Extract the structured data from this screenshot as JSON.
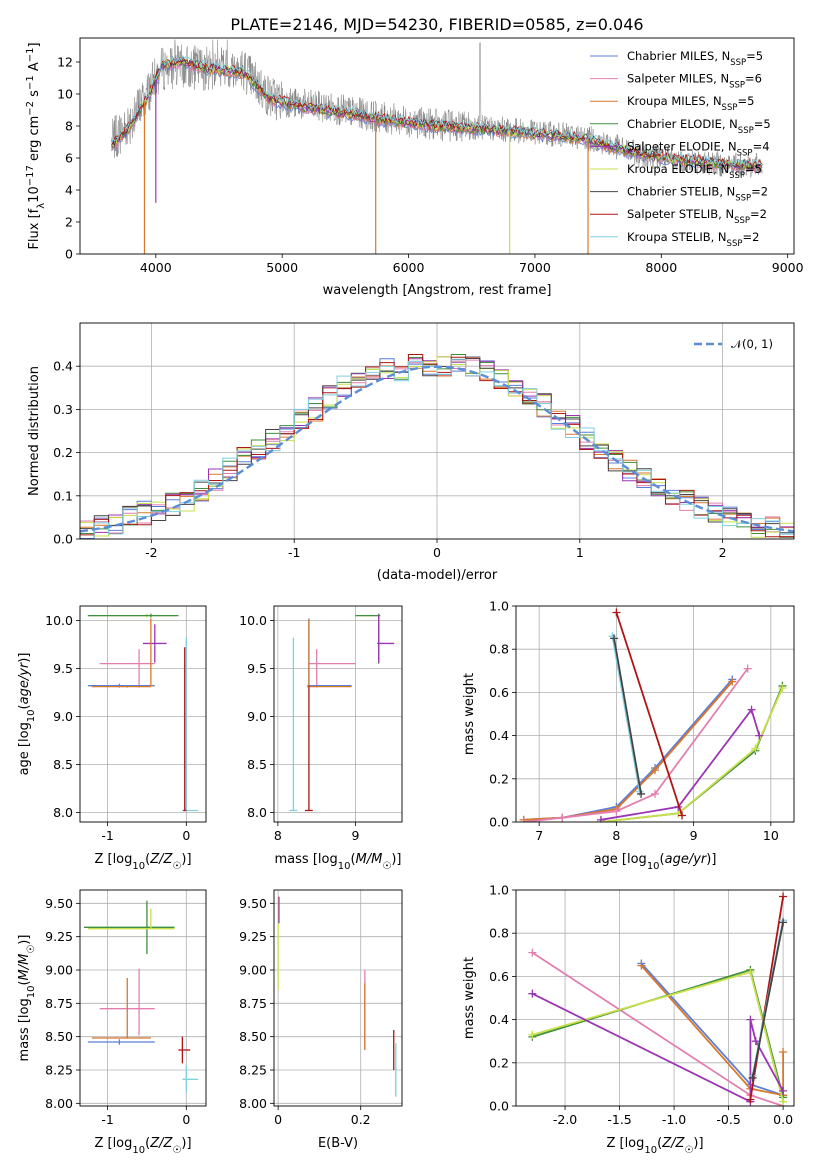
{
  "title": "PLATE=2146, MJD=54230, FIBERID=0585, z=0.046",
  "colors": {
    "Chabrier MILES": "#5b7fd8",
    "Salpeter MILES": "#e27fb0",
    "Kroupa MILES": "#d9772a",
    "Chabrier ELODIE": "#3e8f3e",
    "Salpeter ELODIE": "#9b35b4",
    "Kroupa ELODIE": "#c8e04a",
    "Chabrier STELIB": "#444444",
    "Salpeter STELIB": "#b01515",
    "Kroupa STELIB": "#7fd0e0",
    "data": "#808080",
    "normal": "#5b8ed8"
  },
  "chart_data": [
    {
      "id": "spectrum",
      "type": "line",
      "xlabel": "wavelength [Angstrom, rest frame]",
      "ylabel": "Flux [f_λ 10^-17 erg cm^-2 s^-1 A^-1]",
      "xlim": [
        3400,
        9050
      ],
      "ylim": [
        0,
        13.5
      ],
      "xticks": [
        4000,
        5000,
        6000,
        7000,
        8000,
        9000
      ],
      "yticks": [
        0,
        2,
        4,
        6,
        8,
        10,
        12
      ],
      "grid": false,
      "legend_position": "right",
      "legend": [
        {
          "name": "Chabrier MILES",
          "n": "5"
        },
        {
          "name": "Salpeter MILES",
          "n": "6"
        },
        {
          "name": "Kroupa MILES",
          "n": "5"
        },
        {
          "name": "Chabrier ELODIE",
          "n": "5"
        },
        {
          "name": "Salpeter ELODIE",
          "n": "4"
        },
        {
          "name": "Kroupa ELODIE",
          "n": "5"
        },
        {
          "name": "Chabrier STELIB",
          "n": "2"
        },
        {
          "name": "Salpeter STELIB",
          "n": "2"
        },
        {
          "name": "Kroupa STELIB",
          "n": "2"
        }
      ],
      "model_continuum": [
        [
          3650,
          6.7
        ],
        [
          3800,
          8.0
        ],
        [
          3950,
          10.0
        ],
        [
          4050,
          11.8
        ],
        [
          4200,
          12.0
        ],
        [
          4400,
          11.6
        ],
        [
          4700,
          11.3
        ],
        [
          4900,
          9.7
        ],
        [
          5100,
          9.3
        ],
        [
          5400,
          8.9
        ],
        [
          5800,
          8.4
        ],
        [
          6200,
          8.0
        ],
        [
          6600,
          7.8
        ],
        [
          7000,
          7.5
        ],
        [
          7400,
          7.2
        ],
        [
          7600,
          6.7
        ],
        [
          7800,
          6.3
        ],
        [
          8100,
          5.9
        ],
        [
          8500,
          5.6
        ],
        [
          8800,
          5.5
        ]
      ],
      "data_continuum": [
        [
          3650,
          7.0
        ],
        [
          3800,
          8.3
        ],
        [
          3950,
          10.3
        ],
        [
          4050,
          11.6
        ],
        [
          4200,
          11.7
        ],
        [
          4400,
          11.6
        ],
        [
          4700,
          11.5
        ],
        [
          4900,
          9.8
        ],
        [
          5100,
          9.4
        ],
        [
          5400,
          9.1
        ],
        [
          5800,
          8.5
        ],
        [
          6200,
          8.1
        ],
        [
          6600,
          7.9
        ],
        [
          7000,
          7.6
        ],
        [
          7400,
          7.3
        ],
        [
          7600,
          6.8
        ],
        [
          7800,
          6.3
        ],
        [
          8100,
          5.9
        ],
        [
          8500,
          5.6
        ],
        [
          8800,
          5.5
        ]
      ]
    },
    {
      "id": "residuals",
      "type": "step",
      "xlabel": "(data-model)/error",
      "ylabel": "Normed distribution",
      "xlim": [
        -2.5,
        2.5
      ],
      "ylim": [
        0,
        0.5
      ],
      "xticks": [
        -2,
        -1,
        0,
        1,
        2
      ],
      "yticks": [
        0.0,
        0.1,
        0.2,
        0.3,
        0.4
      ],
      "grid": true,
      "bin_width": 0.1,
      "legend_position": "top-right",
      "normal_label": "𝒩(0, 1)",
      "histogram_centers": [
        -2.45,
        -2.35,
        -2.25,
        -2.15,
        -2.05,
        -1.95,
        -1.85,
        -1.75,
        -1.65,
        -1.55,
        -1.45,
        -1.35,
        -1.25,
        -1.15,
        -1.05,
        -0.95,
        -0.85,
        -0.75,
        -0.65,
        -0.55,
        -0.45,
        -0.35,
        -0.25,
        -0.15,
        -0.05,
        0.05,
        0.15,
        0.25,
        0.35,
        0.45,
        0.55,
        0.65,
        0.75,
        0.85,
        0.95,
        1.05,
        1.15,
        1.25,
        1.35,
        1.45,
        1.55,
        1.65,
        1.75,
        1.85,
        1.95,
        2.05,
        2.15,
        2.25,
        2.35,
        2.45
      ],
      "histogram_values": [
        0.02,
        0.03,
        0.03,
        0.05,
        0.06,
        0.06,
        0.08,
        0.09,
        0.11,
        0.14,
        0.16,
        0.19,
        0.21,
        0.23,
        0.25,
        0.28,
        0.3,
        0.33,
        0.35,
        0.36,
        0.38,
        0.39,
        0.39,
        0.4,
        0.4,
        0.4,
        0.41,
        0.4,
        0.39,
        0.37,
        0.35,
        0.33,
        0.31,
        0.28,
        0.26,
        0.23,
        0.21,
        0.18,
        0.16,
        0.14,
        0.12,
        0.1,
        0.09,
        0.07,
        0.06,
        0.05,
        0.04,
        0.03,
        0.03,
        0.02
      ]
    },
    {
      "id": "age_vs_Z",
      "type": "scatter",
      "xlabel": "Z [log10(Z/Z☉)]",
      "ylabel": "age  [log10(age/yr)]",
      "xlim": [
        -1.35,
        0.25
      ],
      "ylim": [
        7.9,
        10.15
      ],
      "xticks": [
        -1,
        0
      ],
      "yticks": [
        8.0,
        8.5,
        9.0,
        9.5,
        10.0
      ],
      "grid": true,
      "points": [
        {
          "x": -0.5,
          "y": 10.05,
          "xerr": [
            0.75,
            0.35
          ],
          "yerr": [
            0.02,
            0.02
          ],
          "model": "Kroupa ELODIE"
        },
        {
          "x": -0.45,
          "y": 10.05,
          "xerr": [
            0.8,
            0.35
          ],
          "yerr": [
            0.02,
            0.02
          ],
          "model": "Chabrier ELODIE"
        },
        {
          "x": -0.6,
          "y": 9.55,
          "xerr": [
            0.5,
            0.2
          ],
          "yerr": [
            0.25,
            0.15
          ],
          "model": "Salpeter MILES"
        },
        {
          "x": -0.4,
          "y": 9.76,
          "xerr": [
            0.15,
            0.15
          ],
          "yerr": [
            0.2,
            0.2
          ],
          "model": "Salpeter ELODIE"
        },
        {
          "x": -0.85,
          "y": 9.32,
          "xerr": [
            0.4,
            0.45
          ],
          "yerr": [
            0.02,
            0.02
          ],
          "model": "Chabrier MILES"
        },
        {
          "x": -0.75,
          "y": 9.31,
          "xerr": [
            0.45,
            0.3
          ],
          "yerr": [
            0.01,
            0.01
          ],
          "model": "Kroupa MILES"
        },
        {
          "x": -0.45,
          "y": 9.32,
          "xerr": [
            0.02,
            0.02
          ],
          "yerr": [
            0.0,
            0.7
          ],
          "model": "Kroupa MILES"
        },
        {
          "x": 0.0,
          "y": 8.02,
          "xerr": [
            0.05,
            0.15
          ],
          "yerr": [
            0.0,
            1.8
          ],
          "model": "Kroupa STELIB"
        },
        {
          "x": -0.02,
          "y": 8.02,
          "xerr": [
            0.02,
            0.02
          ],
          "yerr": [
            0.0,
            1.7
          ],
          "model": "Salpeter STELIB"
        }
      ]
    },
    {
      "id": "age_vs_mass",
      "type": "scatter",
      "xlabel": "mass [log10(M/M☉)]",
      "ylabel": "",
      "xlim": [
        7.95,
        9.6
      ],
      "ylim": [
        7.9,
        10.15
      ],
      "xticks": [
        8,
        9
      ],
      "yticks": [
        8.0,
        8.5,
        9.0,
        9.5,
        10.0
      ],
      "grid": true,
      "points": [
        {
          "x": 9.3,
          "y": 10.05,
          "xerr": [
            0.3,
            0.02
          ],
          "yerr": [
            0.0,
            0.02
          ],
          "model": "Kroupa ELODIE"
        },
        {
          "x": 9.3,
          "y": 10.05,
          "xerr": [
            0.3,
            0.02
          ],
          "yerr": [
            0.5,
            0.02
          ],
          "model": "Chabrier ELODIE"
        },
        {
          "x": 9.3,
          "y": 9.76,
          "xerr": [
            0.02,
            0.2
          ],
          "yerr": [
            0.2,
            0.3
          ],
          "model": "Salpeter ELODIE"
        },
        {
          "x": 8.5,
          "y": 9.55,
          "xerr": [
            0.1,
            0.5
          ],
          "yerr": [
            0.25,
            0.15
          ],
          "model": "Salpeter MILES"
        },
        {
          "x": 8.4,
          "y": 9.32,
          "xerr": [
            0.02,
            0.55
          ],
          "yerr": [
            0.0,
            0.7
          ],
          "model": "Chabrier MILES"
        },
        {
          "x": 8.4,
          "y": 9.31,
          "xerr": [
            0.02,
            0.55
          ],
          "yerr": [
            0.0,
            0.7
          ],
          "model": "Kroupa MILES"
        },
        {
          "x": 8.2,
          "y": 8.02,
          "xerr": [
            0.05,
            0.05
          ],
          "yerr": [
            0.0,
            1.8
          ],
          "model": "Kroupa STELIB"
        },
        {
          "x": 8.4,
          "y": 8.02,
          "xerr": [
            0.05,
            0.05
          ],
          "yerr": [
            0.0,
            1.3
          ],
          "model": "Salpeter STELIB"
        }
      ]
    },
    {
      "id": "weight_vs_age",
      "type": "line",
      "xlabel": "age  [log10(age/yr)]",
      "ylabel": "mass weight",
      "xlim": [
        6.7,
        10.3
      ],
      "ylim": [
        0,
        1
      ],
      "xticks": [
        7,
        8,
        9,
        10
      ],
      "yticks": [
        0.0,
        0.2,
        0.4,
        0.6,
        0.8,
        1.0
      ],
      "grid": true,
      "series": [
        {
          "model": "Chabrier MILES",
          "x": [
            6.8,
            7.3,
            8.0,
            8.5,
            9.5
          ],
          "y": [
            0.01,
            0.02,
            0.07,
            0.25,
            0.66
          ]
        },
        {
          "model": "Kroupa MILES",
          "x": [
            6.8,
            7.3,
            8.0,
            8.5,
            9.5
          ],
          "y": [
            0.01,
            0.02,
            0.06,
            0.24,
            0.65
          ]
        },
        {
          "model": "Salpeter MILES",
          "x": [
            6.8,
            7.3,
            8.0,
            8.5,
            9.7
          ],
          "y": [
            0.0,
            0.02,
            0.05,
            0.13,
            0.71
          ]
        },
        {
          "model": "Chabrier ELODIE",
          "x": [
            7.8,
            8.8,
            9.8,
            10.15
          ],
          "y": [
            0.0,
            0.04,
            0.33,
            0.63
          ]
        },
        {
          "model": "Kroupa ELODIE",
          "x": [
            7.8,
            8.8,
            9.8,
            10.15
          ],
          "y": [
            0.0,
            0.04,
            0.34,
            0.62
          ]
        },
        {
          "model": "Salpeter ELODIE",
          "x": [
            7.8,
            8.8,
            9.75,
            9.85
          ],
          "y": [
            0.01,
            0.07,
            0.52,
            0.4
          ]
        },
        {
          "model": "Salpeter STELIB",
          "x": [
            8.0,
            8.85
          ],
          "y": [
            0.97,
            0.03
          ]
        },
        {
          "model": "Kroupa STELIB",
          "x": [
            7.95,
            8.3
          ],
          "y": [
            0.86,
            0.14
          ]
        },
        {
          "model": "Chabrier STELIB",
          "x": [
            7.97,
            8.32
          ],
          "y": [
            0.85,
            0.13
          ]
        }
      ]
    },
    {
      "id": "mass_vs_Z",
      "type": "scatter",
      "xlabel": "Z [log10(Z/Z☉)]",
      "ylabel": "mass [log10(M/M☉)]",
      "xlim": [
        -1.35,
        0.25
      ],
      "ylim": [
        7.98,
        9.6
      ],
      "xticks": [
        -1,
        0
      ],
      "yticks": [
        8.0,
        8.25,
        8.5,
        8.75,
        9.0,
        9.25,
        9.5
      ],
      "grid": true,
      "points": [
        {
          "x": -0.5,
          "y": 9.32,
          "xerr": [
            0.8,
            0.35
          ],
          "yerr": [
            0.2,
            0.2
          ],
          "model": "Chabrier ELODIE"
        },
        {
          "x": -0.45,
          "y": 9.31,
          "xerr": [
            0.8,
            0.3
          ],
          "yerr": [
            0.0,
            0.15
          ],
          "model": "Kroupa ELODIE"
        },
        {
          "x": -0.6,
          "y": 8.71,
          "xerr": [
            0.5,
            0.2
          ],
          "yerr": [
            0.2,
            0.3
          ],
          "model": "Salpeter MILES"
        },
        {
          "x": -0.85,
          "y": 8.46,
          "xerr": [
            0.4,
            0.45
          ],
          "yerr": [
            0.02,
            0.02
          ],
          "model": "Chabrier MILES"
        },
        {
          "x": -0.75,
          "y": 8.49,
          "xerr": [
            0.45,
            0.3
          ],
          "yerr": [
            0.0,
            0.45
          ],
          "model": "Kroupa MILES"
        },
        {
          "x": -0.05,
          "y": 8.4,
          "xerr": [
            0.05,
            0.1
          ],
          "yerr": [
            0.1,
            0.1
          ],
          "model": "Salpeter STELIB"
        },
        {
          "x": 0.0,
          "y": 8.18,
          "xerr": [
            0.05,
            0.15
          ],
          "yerr": [
            0.1,
            0.1
          ],
          "model": "Kroupa STELIB"
        }
      ]
    },
    {
      "id": "mass_vs_ebv",
      "type": "scatter",
      "xlabel": "E(B-V)",
      "ylabel": "",
      "xlim": [
        -0.01,
        0.3
      ],
      "ylim": [
        7.98,
        9.6
      ],
      "xticks": [
        0.0,
        0.2
      ],
      "yticks": [
        8.0,
        8.25,
        8.5,
        8.75,
        9.0,
        9.25,
        9.5
      ],
      "grid": true,
      "points": [
        {
          "x": 0.0,
          "y": 9.4,
          "xerr": [
            0.0,
            0.0
          ],
          "yerr": [
            0.55,
            0.15
          ],
          "model": "Kroupa ELODIE"
        },
        {
          "x": 0.002,
          "y": 9.45,
          "xerr": [
            0.0,
            0.0
          ],
          "yerr": [
            0.1,
            0.1
          ],
          "model": "Salpeter ELODIE"
        },
        {
          "x": 0.21,
          "y": 8.7,
          "xerr": [
            0.0,
            0.0
          ],
          "yerr": [
            0.3,
            0.3
          ],
          "model": "Salpeter MILES"
        },
        {
          "x": 0.21,
          "y": 8.65,
          "xerr": [
            0.0,
            0.0
          ],
          "yerr": [
            0.25,
            0.25
          ],
          "model": "Kroupa MILES"
        },
        {
          "x": 0.28,
          "y": 8.4,
          "xerr": [
            0.0,
            0.0
          ],
          "yerr": [
            0.15,
            0.15
          ],
          "model": "Salpeter STELIB"
        },
        {
          "x": 0.285,
          "y": 8.25,
          "xerr": [
            0.0,
            0.0
          ],
          "yerr": [
            0.2,
            0.2
          ],
          "model": "Kroupa STELIB"
        }
      ]
    },
    {
      "id": "weight_vs_Z",
      "type": "line",
      "xlabel": "Z [log10(Z/Z☉)]",
      "ylabel": "mass weight",
      "xlim": [
        -2.45,
        0.1
      ],
      "ylim": [
        0,
        1
      ],
      "xticks": [
        -2.0,
        -1.5,
        -1.0,
        -0.5,
        0.0
      ],
      "yticks": [
        0.0,
        0.2,
        0.4,
        0.6,
        0.8,
        1.0
      ],
      "grid": true,
      "series": [
        {
          "model": "Chabrier MILES",
          "x": [
            -1.3,
            -0.3,
            0.0
          ],
          "y": [
            0.66,
            0.1,
            0.05
          ]
        },
        {
          "model": "Kroupa MILES",
          "x": [
            -1.3,
            -0.3,
            0.0,
            0.0
          ],
          "y": [
            0.65,
            0.08,
            0.05,
            0.25
          ]
        },
        {
          "model": "Salpeter MILES",
          "x": [
            -2.3,
            -0.3,
            0.0
          ],
          "y": [
            0.71,
            0.05,
            0.0
          ]
        },
        {
          "model": "Chabrier ELODIE",
          "x": [
            -2.3,
            -0.3,
            0.0
          ],
          "y": [
            0.32,
            0.63,
            0.04
          ]
        },
        {
          "model": "Kroupa ELODIE",
          "x": [
            -2.3,
            -0.3,
            0.0
          ],
          "y": [
            0.33,
            0.62,
            0.02
          ]
        },
        {
          "model": "Salpeter ELODIE",
          "x": [
            -2.3,
            -0.3,
            -0.3,
            -0.25,
            0.0
          ],
          "y": [
            0.52,
            0.02,
            0.4,
            0.3,
            0.07
          ]
        },
        {
          "model": "Salpeter STELIB",
          "x": [
            -0.3,
            0.0
          ],
          "y": [
            0.03,
            0.97
          ]
        },
        {
          "model": "Kroupa STELIB",
          "x": [
            -0.28,
            0.0
          ],
          "y": [
            0.14,
            0.86
          ]
        },
        {
          "model": "Chabrier STELIB",
          "x": [
            -0.28,
            0.0
          ],
          "y": [
            0.13,
            0.85
          ]
        }
      ]
    }
  ]
}
